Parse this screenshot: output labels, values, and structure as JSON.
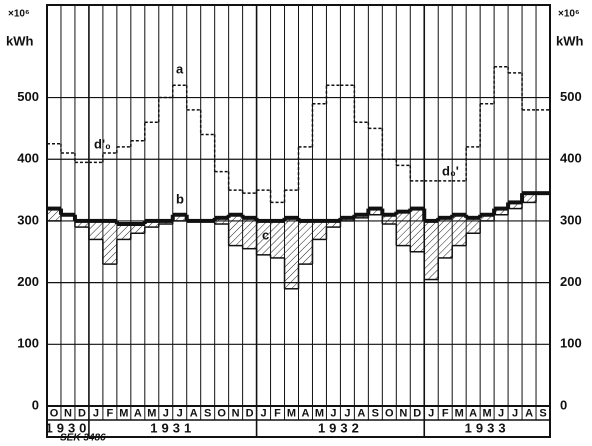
{
  "chart_data": {
    "type": "step",
    "y_unit": "×10⁶",
    "y_label": "kWh",
    "categories": [
      "O",
      "N",
      "D",
      "J",
      "F",
      "M",
      "A",
      "M",
      "J",
      "J",
      "A",
      "S",
      "O",
      "N",
      "D",
      "J",
      "F",
      "M",
      "A",
      "M",
      "J",
      "J",
      "A",
      "S",
      "O",
      "N",
      "D",
      "J",
      "F",
      "M",
      "A",
      "M",
      "J",
      "J",
      "A",
      "S"
    ],
    "year_labels": [
      "1930",
      "1931",
      "1932",
      "1933"
    ],
    "series": [
      {
        "name": "a",
        "color": "#111",
        "dash": true,
        "width": 1.5,
        "values": [
          425,
          410,
          395,
          395,
          410,
          420,
          430,
          460,
          500,
          520,
          480,
          440,
          380,
          350,
          345,
          350,
          330,
          350,
          420,
          490,
          520,
          520,
          460,
          450,
          400,
          390,
          365,
          365,
          365,
          365,
          420,
          490,
          550,
          540,
          480,
          480
        ]
      },
      {
        "name": "b",
        "color": "#111",
        "dash": false,
        "width": 4,
        "values": [
          320,
          310,
          300,
          300,
          300,
          295,
          295,
          300,
          300,
          310,
          300,
          300,
          305,
          310,
          305,
          300,
          300,
          305,
          300,
          300,
          300,
          305,
          310,
          320,
          310,
          315,
          320,
          300,
          305,
          310,
          305,
          310,
          320,
          330,
          345,
          345
        ]
      },
      {
        "name": "c",
        "color": "#111",
        "dash": false,
        "width": 1.5,
        "values": [
          300,
          310,
          290,
          270,
          230,
          270,
          280,
          290,
          295,
          300,
          300,
          300,
          295,
          260,
          255,
          245,
          240,
          190,
          230,
          270,
          290,
          300,
          305,
          310,
          295,
          260,
          250,
          205,
          240,
          260,
          280,
          300,
          310,
          320,
          330,
          345
        ]
      }
    ],
    "annotations": [
      "a",
      "b",
      "d'₀",
      "d₀'",
      "c"
    ],
    "footnote": "SEK 3486",
    "ylim": [
      0,
      650
    ],
    "yticks": [
      0,
      100,
      200,
      300,
      400,
      500
    ],
    "grid": true
  }
}
